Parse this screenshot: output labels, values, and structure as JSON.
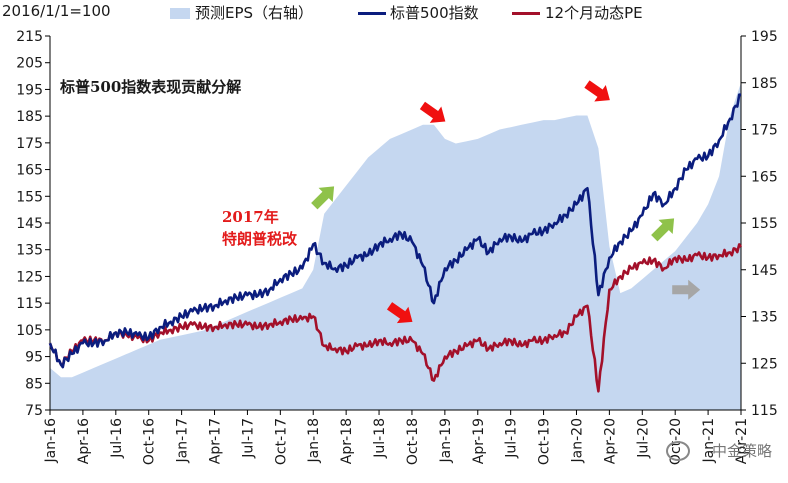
{
  "chart_data": {
    "type": "line",
    "left_axis_title": "2016/1/1=100",
    "annotation_title": "标普500指数表现贡献分解",
    "annotation_event": "2017年\n特朗普税改",
    "watermark": "中金策略",
    "ylim_left": [
      75,
      215
    ],
    "yticks_left": [
      75,
      85,
      95,
      105,
      115,
      125,
      135,
      145,
      155,
      165,
      175,
      185,
      195,
      205,
      215
    ],
    "ylim_right": [
      115,
      195
    ],
    "yticks_right": [
      115,
      125,
      135,
      145,
      155,
      165,
      175,
      185,
      195
    ],
    "xlim": [
      "2016-01",
      "2021-04"
    ],
    "x_ticks": [
      "Jan-16",
      "Apr-16",
      "Jul-16",
      "Oct-16",
      "Jan-17",
      "Apr-17",
      "Jul-17",
      "Oct-17",
      "Jan-18",
      "Apr-18",
      "Jul-18",
      "Oct-18",
      "Jan-19",
      "Apr-19",
      "Jul-19",
      "Oct-19",
      "Jan-20",
      "Apr-20",
      "Jul-20",
      "Oct-20",
      "Jan-21",
      "Apr-21"
    ],
    "colors": {
      "eps": "#c5d7f0",
      "spx": "#0b1d7e",
      "pe": "#a3102a",
      "arrow_red": "#f01010",
      "arrow_green": "#8fc24a",
      "arrow_gray": "#a6a6a6",
      "note_red": "#e31b1b"
    },
    "series": [
      {
        "name": "预测EPS（右轴）",
        "axis": "right",
        "x": [
          "2016-01",
          "2016-02",
          "2016-03",
          "2016-04",
          "2016-05",
          "2016-06",
          "2016-07",
          "2016-08",
          "2016-09",
          "2016-10",
          "2016-11",
          "2016-12",
          "2017-01",
          "2017-02",
          "2017-03",
          "2017-04",
          "2017-05",
          "2017-06",
          "2017-07",
          "2017-08",
          "2017-09",
          "2017-10",
          "2017-11",
          "2017-12",
          "2018-01",
          "2018-02",
          "2018-03",
          "2018-04",
          "2018-05",
          "2018-06",
          "2018-07",
          "2018-08",
          "2018-09",
          "2018-10",
          "2018-11",
          "2018-12",
          "2019-01",
          "2019-02",
          "2019-03",
          "2019-04",
          "2019-05",
          "2019-06",
          "2019-07",
          "2019-08",
          "2019-09",
          "2019-10",
          "2019-11",
          "2019-12",
          "2020-01",
          "2020-02",
          "2020-03",
          "2020-04",
          "2020-05",
          "2020-06",
          "2020-07",
          "2020-08",
          "2020-09",
          "2020-10",
          "2020-11",
          "2020-12",
          "2021-01",
          "2021-02",
          "2021-03",
          "2021-04"
        ],
        "values": [
          124,
          122,
          122,
          123,
          124,
          125,
          126,
          127,
          128,
          129,
          130,
          130.5,
          131,
          131.5,
          132,
          133,
          134,
          135,
          136,
          137,
          138,
          139,
          140,
          141,
          145,
          157,
          160,
          163,
          166,
          169,
          171,
          173,
          174,
          175,
          176,
          176,
          173,
          172,
          172.5,
          173,
          174,
          175,
          175.5,
          176,
          176.5,
          177,
          177,
          177.5,
          178,
          178,
          171,
          150,
          140,
          141,
          143,
          145,
          147,
          149,
          152,
          155,
          159,
          165,
          178,
          185
        ]
      },
      {
        "name": "标普500指数",
        "axis": "left",
        "x": [
          "2016-01",
          "2016-02",
          "2016-03",
          "2016-04",
          "2016-05",
          "2016-06",
          "2016-07",
          "2016-08",
          "2016-09",
          "2016-10",
          "2016-11",
          "2016-12",
          "2017-01",
          "2017-02",
          "2017-03",
          "2017-04",
          "2017-05",
          "2017-06",
          "2017-07",
          "2017-08",
          "2017-09",
          "2017-10",
          "2017-11",
          "2017-12",
          "2018-01",
          "2018-02",
          "2018-03",
          "2018-04",
          "2018-05",
          "2018-06",
          "2018-07",
          "2018-08",
          "2018-09",
          "2018-10",
          "2018-11",
          "2018-12",
          "2019-01",
          "2019-02",
          "2019-03",
          "2019-04",
          "2019-05",
          "2019-06",
          "2019-07",
          "2019-08",
          "2019-09",
          "2019-10",
          "2019-11",
          "2019-12",
          "2020-01",
          "2020-02",
          "2020-03",
          "2020-04",
          "2020-05",
          "2020-06",
          "2020-07",
          "2020-08",
          "2020-09",
          "2020-10",
          "2020-11",
          "2020-12",
          "2021-01",
          "2021-02",
          "2021-03",
          "2021-04"
        ],
        "values": [
          100,
          92,
          96,
          100,
          100,
          101,
          104,
          104,
          103,
          102,
          106,
          108,
          110,
          112,
          113,
          114,
          116,
          117,
          118,
          118,
          120,
          124,
          126,
          128,
          137,
          130,
          128,
          129,
          132,
          133,
          137,
          139,
          141,
          138,
          129,
          115,
          128,
          131,
          135,
          139,
          134,
          139,
          140,
          138,
          141,
          142,
          145,
          148,
          152,
          158,
          118,
          132,
          138,
          142,
          148,
          156,
          152,
          158,
          165,
          169,
          170,
          176,
          184,
          193
        ]
      },
      {
        "name": "12个月动态PE",
        "axis": "left",
        "x": [
          "2016-01",
          "2016-02",
          "2016-03",
          "2016-04",
          "2016-05",
          "2016-06",
          "2016-07",
          "2016-08",
          "2016-09",
          "2016-10",
          "2016-11",
          "2016-12",
          "2017-01",
          "2017-02",
          "2017-03",
          "2017-04",
          "2017-05",
          "2017-06",
          "2017-07",
          "2017-08",
          "2017-09",
          "2017-10",
          "2017-11",
          "2017-12",
          "2018-01",
          "2018-02",
          "2018-03",
          "2018-04",
          "2018-05",
          "2018-06",
          "2018-07",
          "2018-08",
          "2018-09",
          "2018-10",
          "2018-11",
          "2018-12",
          "2019-01",
          "2019-02",
          "2019-03",
          "2019-04",
          "2019-05",
          "2019-06",
          "2019-07",
          "2019-08",
          "2019-09",
          "2019-10",
          "2019-11",
          "2019-12",
          "2020-01",
          "2020-02",
          "2020-03",
          "2020-04",
          "2020-05",
          "2020-06",
          "2020-07",
          "2020-08",
          "2020-09",
          "2020-10",
          "2020-11",
          "2020-12",
          "2021-01",
          "2021-02",
          "2021-03",
          "2021-04"
        ],
        "values": [
          100,
          92,
          97,
          101,
          101,
          101,
          104,
          103,
          102,
          101,
          104,
          105,
          106,
          107,
          106,
          106,
          107,
          107,
          107,
          106,
          107,
          108,
          109,
          109,
          110,
          99,
          98,
          97,
          99,
          99,
          101,
          100,
          101,
          101,
          96,
          86,
          95,
          97,
          99,
          101,
          98,
          100,
          101,
          99,
          101,
          101,
          103,
          104,
          110,
          114,
          82,
          120,
          125,
          128,
          130,
          131,
          128,
          132,
          131,
          133,
          132,
          133,
          134,
          136
        ]
      }
    ],
    "arrows": [
      {
        "color": "red",
        "anchor_date": "2018-09",
        "anchor_value": 111,
        "direction": "down-right"
      },
      {
        "color": "red",
        "anchor_date": "2018-12",
        "anchor_value": 186,
        "direction": "down-right"
      },
      {
        "color": "red",
        "anchor_date": "2020-03",
        "anchor_value": 194,
        "direction": "down-right"
      },
      {
        "color": "green",
        "anchor_date": "2018-02",
        "anchor_value": 155,
        "direction": "up-right"
      },
      {
        "color": "green",
        "anchor_date": "2020-09",
        "anchor_value": 143,
        "direction": "up-right"
      },
      {
        "color": "gray",
        "anchor_date": "2020-11",
        "anchor_value": 120,
        "direction": "right"
      }
    ]
  }
}
